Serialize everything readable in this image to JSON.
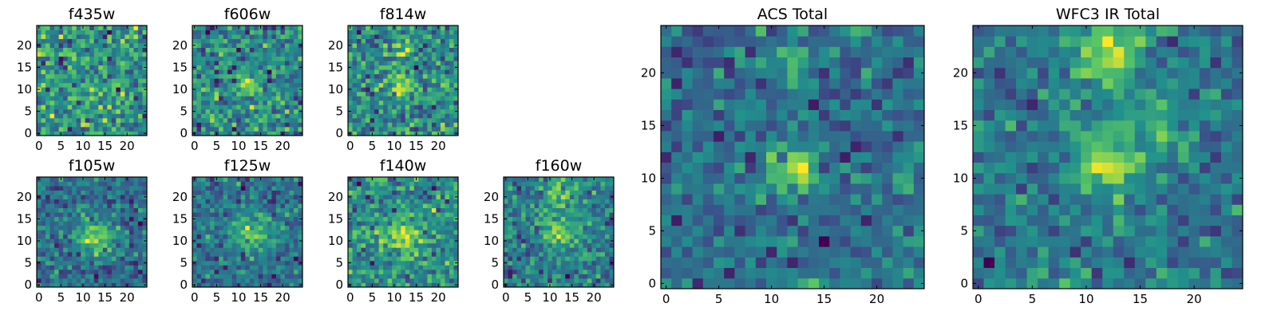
{
  "chart_data": {
    "type": "heatmap",
    "colormap": "viridis",
    "colormap_stops": [
      "#440154",
      "#3b528b",
      "#21918c",
      "#5ec962",
      "#fde725"
    ],
    "grid_size": [
      25,
      25
    ],
    "panels": [
      {
        "id": "f435w",
        "title": "f435w",
        "xticks": [
          "0",
          "5",
          "10",
          "15",
          "20"
        ],
        "yticks": [
          "0",
          "5",
          "10",
          "15",
          "20"
        ],
        "ticks": [
          0,
          5,
          10,
          15,
          20
        ],
        "noise": 0.9,
        "sources": [
          {
            "x": 12,
            "y": 10,
            "a": 0.4,
            "s": 2
          }
        ],
        "seed": 11
      },
      {
        "id": "f606w",
        "title": "f606w",
        "xticks": [
          "0",
          "5",
          "10",
          "15",
          "20"
        ],
        "yticks": [
          "0",
          "5",
          "10",
          "15",
          "20"
        ],
        "ticks": [
          0,
          5,
          10,
          15,
          20
        ],
        "noise": 0.8,
        "sources": [
          {
            "x": 12,
            "y": 11,
            "a": 1.2,
            "s": 1.6
          }
        ],
        "seed": 23
      },
      {
        "id": "f814w",
        "title": "f814w",
        "xticks": [
          "0",
          "5",
          "10",
          "15",
          "20"
        ],
        "yticks": [
          "0",
          "5",
          "10",
          "15",
          "20"
        ],
        "ticks": [
          0,
          5,
          10,
          15,
          20
        ],
        "noise": 0.85,
        "sources": [
          {
            "x": 12,
            "y": 11,
            "a": 0.9,
            "s": 2
          },
          {
            "x": 12,
            "y": 20,
            "a": 0.7,
            "s": 2
          }
        ],
        "seed": 37
      },
      {
        "id": "f105w",
        "title": "f105w",
        "xticks": [
          "0",
          "5",
          "10",
          "15",
          "20"
        ],
        "yticks": [
          "0",
          "5",
          "10",
          "15",
          "20"
        ],
        "ticks": [
          0,
          5,
          10,
          15,
          20
        ],
        "noise": 0.55,
        "sources": [
          {
            "x": 13,
            "y": 11,
            "a": 1.3,
            "s": 2.6
          }
        ],
        "seed": 41
      },
      {
        "id": "f125w",
        "title": "f125w",
        "xticks": [
          "0",
          "5",
          "10",
          "15",
          "20"
        ],
        "yticks": [
          "0",
          "5",
          "10",
          "15",
          "20"
        ],
        "ticks": [
          0,
          5,
          10,
          15,
          20
        ],
        "noise": 0.6,
        "sources": [
          {
            "x": 13,
            "y": 12,
            "a": 1.0,
            "s": 3
          }
        ],
        "seed": 53
      },
      {
        "id": "f140w",
        "title": "f140w",
        "xticks": [
          "0",
          "5",
          "10",
          "15",
          "20"
        ],
        "yticks": [
          "0",
          "5",
          "10",
          "15",
          "20"
        ],
        "ticks": [
          0,
          5,
          10,
          15,
          20
        ],
        "noise": 0.6,
        "sources": [
          {
            "x": 12,
            "y": 11,
            "a": 1.0,
            "s": 2.4
          }
        ],
        "seed": 67
      },
      {
        "id": "f160w",
        "title": "f160w",
        "xticks": [
          "0",
          "5",
          "10",
          "15",
          "20"
        ],
        "yticks": [
          "0",
          "5",
          "10",
          "15",
          "20"
        ],
        "ticks": [
          0,
          5,
          10,
          15,
          20
        ],
        "noise": 0.6,
        "sources": [
          {
            "x": 12,
            "y": 12,
            "a": 1.1,
            "s": 2.6
          },
          {
            "x": 12,
            "y": 21,
            "a": 0.8,
            "s": 2.5
          }
        ],
        "seed": 79
      },
      {
        "id": "acs_total",
        "title": "ACS Total",
        "xticks": [
          "0",
          "5",
          "10",
          "15",
          "20"
        ],
        "yticks": [
          "0",
          "5",
          "10",
          "15",
          "20"
        ],
        "ticks": [
          0,
          5,
          10,
          15,
          20
        ],
        "noise": 0.6,
        "sources": [
          {
            "x": 12,
            "y": 10.5,
            "a": 1.4,
            "s": 1.6
          },
          {
            "x": 12,
            "y": 21,
            "a": 0.7,
            "s": 1.5
          }
        ],
        "seed": 97
      },
      {
        "id": "wfc3_ir_total",
        "title": "WFC3 IR Total",
        "xticks": [
          "0",
          "5",
          "10",
          "15",
          "20"
        ],
        "yticks": [
          "0",
          "5",
          "10",
          "15",
          "20"
        ],
        "ticks": [
          0,
          5,
          10,
          15,
          20
        ],
        "noise": 0.45,
        "sources": [
          {
            "x": 12,
            "y": 12,
            "a": 1.2,
            "s": 2.2
          },
          {
            "x": 12,
            "y": 22,
            "a": 1.1,
            "s": 2.3
          },
          {
            "x": 17,
            "y": 15,
            "a": 0.6,
            "s": 1.6
          }
        ],
        "seed": 113
      }
    ]
  }
}
